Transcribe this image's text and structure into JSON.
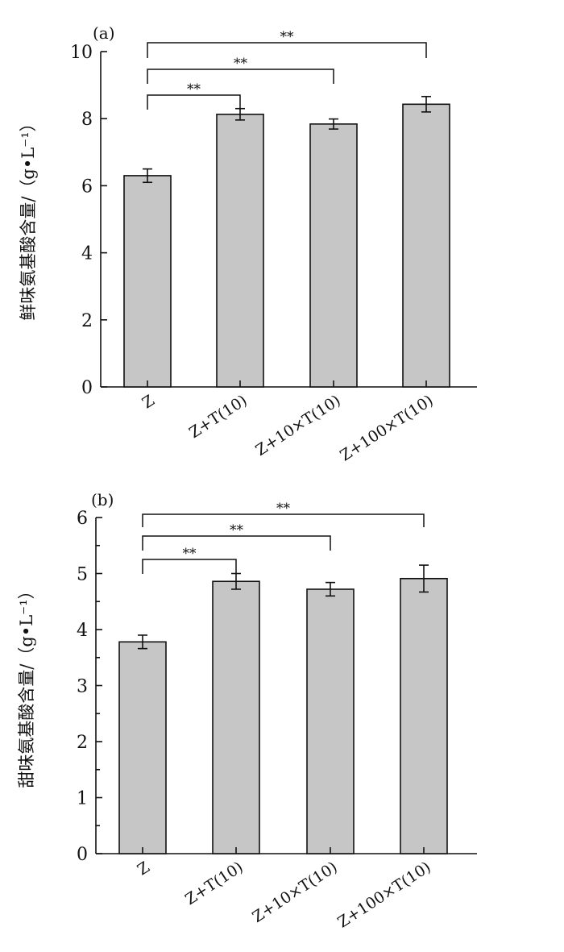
{
  "chart_data": [
    {
      "type": "bar",
      "panel_label": "(a)",
      "ylabel": "鲜味氨基酸含量/（g•L⁻¹）",
      "categories": [
        "Z",
        "Z+T(10)",
        "Z+10×T(10)",
        "Z+100×T(10)"
      ],
      "values": [
        6.3,
        8.13,
        7.84,
        8.43
      ],
      "errors": [
        0.2,
        0.17,
        0.15,
        0.23
      ],
      "ylim": [
        0,
        10
      ],
      "yticks": [
        "0",
        "2",
        "4",
        "6",
        "8",
        "10"
      ],
      "minor_ticks": false,
      "bar_color": "#c6c6c6",
      "significance": [
        {
          "from": 0,
          "to": 1,
          "label": "**"
        },
        {
          "from": 0,
          "to": 2,
          "label": "**"
        },
        {
          "from": 0,
          "to": 3,
          "label": "**"
        }
      ]
    },
    {
      "type": "bar",
      "panel_label": "(b)",
      "ylabel": "甜味氨基酸含量/（g•L⁻¹）",
      "categories": [
        "Z",
        "Z+T(10)",
        "Z+10×T(10)",
        "Z+100×T(10)"
      ],
      "values": [
        3.78,
        4.86,
        4.72,
        4.91
      ],
      "errors": [
        0.12,
        0.14,
        0.12,
        0.24
      ],
      "ylim": [
        0,
        6
      ],
      "yticks": [
        "0",
        "1",
        "2",
        "3",
        "4",
        "5",
        "6"
      ],
      "minor_ticks": true,
      "bar_color": "#c6c6c6",
      "significance": [
        {
          "from": 0,
          "to": 1,
          "label": "**"
        },
        {
          "from": 0,
          "to": 2,
          "label": "**"
        },
        {
          "from": 0,
          "to": 3,
          "label": "**"
        }
      ]
    }
  ]
}
